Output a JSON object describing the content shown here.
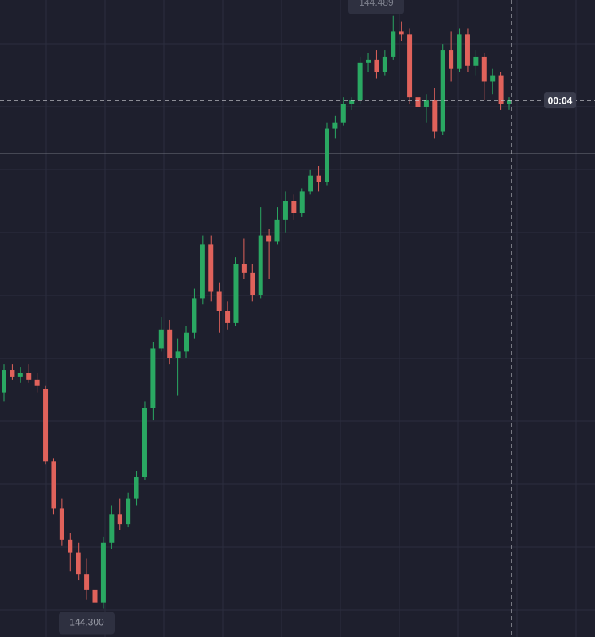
{
  "chart_data": {
    "type": "candlestick",
    "up_color": "#2aa862",
    "down_color": "#e0625b",
    "ylim": [
      144.291,
      144.494
    ],
    "open": [
      144.369,
      144.376,
      144.374,
      144.375,
      144.373,
      144.37,
      144.347,
      144.332,
      144.322,
      144.318,
      144.311,
      144.306,
      144.302,
      144.321,
      144.33,
      144.327,
      144.335,
      144.342,
      144.364,
      144.383,
      144.389,
      144.38,
      144.382,
      144.388,
      144.399,
      144.416,
      144.401,
      144.395,
      144.391,
      144.41,
      144.407,
      144.4,
      144.419,
      144.417,
      144.424,
      144.43,
      144.426,
      144.433,
      144.438,
      144.436,
      144.453,
      144.455,
      144.461,
      144.462,
      144.474,
      144.475,
      144.471,
      144.476,
      144.484,
      144.483,
      144.463,
      144.46,
      144.462,
      144.452,
      144.478,
      144.472,
      144.483,
      144.473,
      144.476,
      144.468,
      144.47,
      144.461
    ],
    "high": [
      144.378,
      144.378,
      144.377,
      144.378,
      144.375,
      144.371,
      144.348,
      144.335,
      144.324,
      144.321,
      144.316,
      144.308,
      144.323,
      144.333,
      144.335,
      144.337,
      144.344,
      144.366,
      144.385,
      144.393,
      144.392,
      144.386,
      144.39,
      144.402,
      144.419,
      144.419,
      144.404,
      144.398,
      144.412,
      144.418,
      144.41,
      144.428,
      144.421,
      144.428,
      144.433,
      144.432,
      144.434,
      144.44,
      144.441,
      144.455,
      144.457,
      144.463,
      144.463,
      144.476,
      144.477,
      144.478,
      144.478,
      144.489,
      144.487,
      144.485,
      144.466,
      144.464,
      144.466,
      144.48,
      144.484,
      144.485,
      144.485,
      144.478,
      144.477,
      144.472,
      144.471,
      144.463
    ],
    "low": [
      144.366,
      144.373,
      144.372,
      144.372,
      144.369,
      144.346,
      144.33,
      144.32,
      144.312,
      144.309,
      144.303,
      144.3,
      144.3,
      144.319,
      144.325,
      144.326,
      144.333,
      144.341,
      144.36,
      144.382,
      144.378,
      144.368,
      144.38,
      144.386,
      144.397,
      144.398,
      144.388,
      144.389,
      144.39,
      144.405,
      144.398,
      144.399,
      144.405,
      144.416,
      144.42,
      144.424,
      144.425,
      144.432,
      144.433,
      144.435,
      144.45,
      144.454,
      144.459,
      144.461,
      144.471,
      144.469,
      144.47,
      144.475,
      144.481,
      144.461,
      144.458,
      144.455,
      144.45,
      144.451,
      144.468,
      144.471,
      144.471,
      144.47,
      144.462,
      144.464,
      144.459,
      144.459
    ],
    "close": [
      144.376,
      144.374,
      144.375,
      144.373,
      144.371,
      144.347,
      144.332,
      144.322,
      144.318,
      144.311,
      144.306,
      144.302,
      144.321,
      144.33,
      144.327,
      144.335,
      144.342,
      144.364,
      144.383,
      144.389,
      144.38,
      144.382,
      144.388,
      144.399,
      144.416,
      144.401,
      144.395,
      144.391,
      144.41,
      144.407,
      144.4,
      144.419,
      144.417,
      144.424,
      144.43,
      144.426,
      144.433,
      144.438,
      144.436,
      144.453,
      144.455,
      144.461,
      144.462,
      144.474,
      144.475,
      144.471,
      144.476,
      144.484,
      144.483,
      144.463,
      144.46,
      144.462,
      144.452,
      144.478,
      144.472,
      144.483,
      144.473,
      144.476,
      144.468,
      144.47,
      144.461,
      144.462
    ],
    "price_line": 144.445,
    "crosshair": {
      "value": 144.462,
      "label": "00:04"
    },
    "max_marker": 144.489,
    "min_marker": {
      "value": 144.3,
      "label": "144.300"
    }
  }
}
